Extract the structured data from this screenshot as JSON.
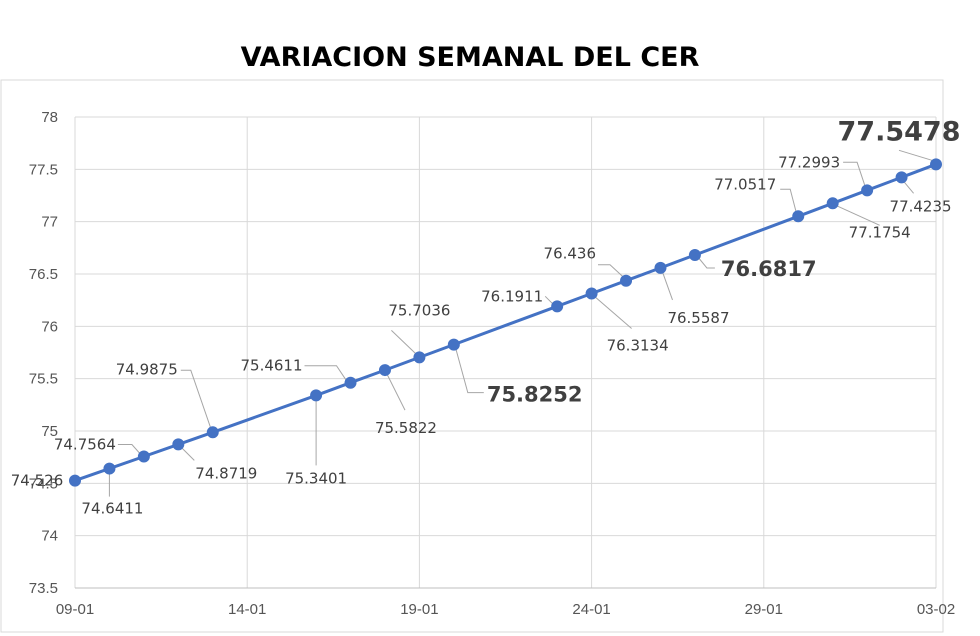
{
  "chart_data": {
    "type": "line",
    "title": "VARIACION SEMANAL DEL CER",
    "xlabel": "",
    "ylabel": "",
    "x_tick_labels": [
      "09-01",
      "14-01",
      "19-01",
      "24-01",
      "29-01",
      "03-02"
    ],
    "y_tick_labels": [
      "73.5",
      "74",
      "74.5",
      "75",
      "75.5",
      "76",
      "76.5",
      "77",
      "77.5",
      "78"
    ],
    "ylim": [
      73.5,
      78
    ],
    "grid": true,
    "legend": "none",
    "series_color": "#4472c4",
    "series": [
      {
        "x": [
          "2024-01-09",
          "2024-01-10",
          "2024-01-11",
          "2024-01-12",
          "2024-01-13",
          "2024-01-16",
          "2024-01-17",
          "2024-01-18",
          "2024-01-19",
          "2024-01-20",
          "2024-01-23",
          "2024-01-24",
          "2024-01-25",
          "2024-01-26",
          "2024-01-27",
          "2024-01-30",
          "2024-01-31",
          "2024-02-01",
          "2024-02-02",
          "2024-02-03"
        ],
        "values": [
          74.526,
          74.6411,
          74.7564,
          74.8719,
          74.9875,
          75.3401,
          75.4611,
          75.5822,
          75.7036,
          75.8252,
          76.1911,
          76.3134,
          76.436,
          76.5587,
          76.6817,
          77.0517,
          77.1754,
          77.2993,
          77.4235,
          77.5478
        ],
        "data_labels": [
          "74.526",
          "74.6411",
          "74.7564",
          "74.8719",
          "74.9875",
          "75.3401",
          "75.4611",
          "75.5822",
          "75.7036",
          "75.8252",
          "76.1911",
          "76.3134",
          "76.436",
          "76.5587",
          "76.6817",
          "77.0517",
          "77.1754",
          "77.2993",
          "77.4235",
          "77.5478"
        ]
      }
    ]
  }
}
